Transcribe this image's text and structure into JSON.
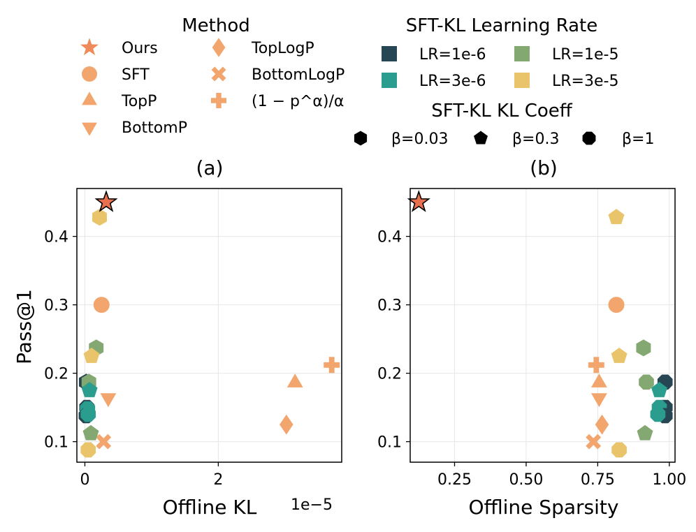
{
  "legend": {
    "method_title": "Method",
    "methods": [
      {
        "label": "Ours",
        "marker": "star",
        "color": "#ef8a5a"
      },
      {
        "label": "SFT",
        "marker": "circle",
        "color": "#f2a56d"
      },
      {
        "label": "TopP",
        "marker": "triangle-up",
        "color": "#f2a56d"
      },
      {
        "label": "BottomP",
        "marker": "triangle-down",
        "color": "#f2a56d"
      },
      {
        "label": "TopLogP",
        "marker": "diamond",
        "color": "#f2a56d"
      },
      {
        "label": "BottomLogP",
        "marker": "x",
        "color": "#f2a56d"
      },
      {
        "label": "(1 − p^α)/α",
        "marker": "plus",
        "color": "#f2a56d"
      }
    ],
    "lr_title": "SFT-KL Learning Rate",
    "lrs": [
      {
        "label": "LR=1e-6",
        "color": "#264653"
      },
      {
        "label": "LR=1e-5",
        "color": "#84a872"
      },
      {
        "label": "LR=3e-6",
        "color": "#2a9d8f"
      },
      {
        "label": "LR=3e-5",
        "color": "#e9c46a"
      }
    ],
    "kl_title": "SFT-KL KL Coeff",
    "kls": [
      {
        "label": "β=0.03",
        "marker": "hexagon"
      },
      {
        "label": "β=0.3",
        "marker": "pentagon"
      },
      {
        "label": "β=1",
        "marker": "octagon"
      }
    ]
  },
  "chart_data": [
    {
      "type": "scatter",
      "panel_label": "(a)",
      "xlabel": "Offline KL",
      "ylabel": "Pass@1",
      "x_scale_label": "1e−5",
      "xlim": [
        -0.12,
        3.85
      ],
      "ylim": [
        0.07,
        0.47
      ],
      "xticks": [
        0,
        2
      ],
      "xticklabels": [
        "0",
        "2"
      ],
      "yticks": [
        0.1,
        0.2,
        0.3,
        0.4
      ],
      "yticklabels": [
        "0.1",
        "0.2",
        "0.3",
        "0.4"
      ],
      "grid": true,
      "points": [
        {
          "method": "Ours",
          "marker": "star",
          "color": "#e8704f",
          "x": 0.32,
          "y": 0.45
        },
        {
          "method": "SFT",
          "marker": "circle",
          "color": "#f2a56d",
          "x": 0.25,
          "y": 0.3
        },
        {
          "method": "TopP",
          "marker": "triangle-up",
          "color": "#f2a56d",
          "x": 3.15,
          "y": 0.186
        },
        {
          "method": "BottomP",
          "marker": "triangle-down",
          "color": "#f2a56d",
          "x": 0.35,
          "y": 0.164
        },
        {
          "method": "TopLogP",
          "marker": "diamond",
          "color": "#f2a56d",
          "x": 3.02,
          "y": 0.125
        },
        {
          "method": "BottomLogP",
          "marker": "x",
          "color": "#f2a56d",
          "x": 0.28,
          "y": 0.1
        },
        {
          "method": "(1 − p^α)/α",
          "marker": "plus",
          "color": "#f2a56d",
          "x": 3.7,
          "y": 0.212
        },
        {
          "method": "SFT-KL",
          "marker": "hexagon",
          "color": "#e9c46a",
          "x": 0.22,
          "y": 0.428
        },
        {
          "method": "SFT-KL",
          "marker": "hexagon",
          "color": "#84a872",
          "x": 0.17,
          "y": 0.237
        },
        {
          "method": "SFT-KL",
          "marker": "pentagon",
          "color": "#e9c46a",
          "x": 0.1,
          "y": 0.225
        },
        {
          "method": "SFT-KL",
          "marker": "hexagon",
          "color": "#264653",
          "x": 0.02,
          "y": 0.187
        },
        {
          "method": "SFT-KL",
          "marker": "hexagon",
          "color": "#84a872",
          "x": 0.06,
          "y": 0.187
        },
        {
          "method": "SFT-KL",
          "marker": "pentagon",
          "color": "#2a9d8f",
          "x": 0.07,
          "y": 0.175
        },
        {
          "method": "SFT-KL",
          "marker": "octagon",
          "color": "#264653",
          "x": 0.03,
          "y": 0.15
        },
        {
          "method": "SFT-KL",
          "marker": "octagon",
          "color": "#2a9d8f",
          "x": 0.04,
          "y": 0.148
        },
        {
          "method": "SFT-KL",
          "marker": "octagon",
          "color": "#264653",
          "x": 0.02,
          "y": 0.138
        },
        {
          "method": "SFT-KL",
          "marker": "octagon",
          "color": "#2a9d8f",
          "x": 0.05,
          "y": 0.14
        },
        {
          "method": "SFT-KL",
          "marker": "pentagon",
          "color": "#84a872",
          "x": 0.09,
          "y": 0.112
        },
        {
          "method": "SFT-KL",
          "marker": "octagon",
          "color": "#e9c46a",
          "x": 0.05,
          "y": 0.088
        }
      ]
    },
    {
      "type": "scatter",
      "panel_label": "(b)",
      "xlabel": "Offline Sparsity",
      "ylabel": "",
      "xlim": [
        0.095,
        1.02
      ],
      "ylim": [
        0.07,
        0.47
      ],
      "xticks": [
        0.25,
        0.5,
        0.75,
        1.0
      ],
      "xticklabels": [
        "0.25",
        "0.50",
        "0.75",
        "1.00"
      ],
      "yticks": [
        0.1,
        0.2,
        0.3,
        0.4
      ],
      "yticklabels": [
        "0.1",
        "0.2",
        "0.3",
        "0.4"
      ],
      "grid": true,
      "points": [
        {
          "method": "Ours",
          "marker": "star",
          "color": "#e8704f",
          "x": 0.125,
          "y": 0.45
        },
        {
          "method": "SFT",
          "marker": "circle",
          "color": "#f2a56d",
          "x": 0.815,
          "y": 0.3
        },
        {
          "method": "TopP",
          "marker": "triangle-up",
          "color": "#f2a56d",
          "x": 0.755,
          "y": 0.186
        },
        {
          "method": "BottomP",
          "marker": "triangle-down",
          "color": "#f2a56d",
          "x": 0.755,
          "y": 0.164
        },
        {
          "method": "TopLogP",
          "marker": "diamond",
          "color": "#f2a56d",
          "x": 0.765,
          "y": 0.125
        },
        {
          "method": "BottomLogP",
          "marker": "x",
          "color": "#f2a56d",
          "x": 0.735,
          "y": 0.1
        },
        {
          "method": "(1 − p^α)/α",
          "marker": "plus",
          "color": "#f2a56d",
          "x": 0.745,
          "y": 0.212
        },
        {
          "method": "SFT-KL",
          "marker": "pentagon",
          "color": "#e9c46a",
          "x": 0.815,
          "y": 0.428
        },
        {
          "method": "SFT-KL",
          "marker": "hexagon",
          "color": "#84a872",
          "x": 0.91,
          "y": 0.237
        },
        {
          "method": "SFT-KL",
          "marker": "pentagon",
          "color": "#e9c46a",
          "x": 0.825,
          "y": 0.225
        },
        {
          "method": "SFT-KL",
          "marker": "octagon",
          "color": "#264653",
          "x": 0.985,
          "y": 0.187
        },
        {
          "method": "SFT-KL",
          "marker": "octagon",
          "color": "#84a872",
          "x": 0.92,
          "y": 0.187
        },
        {
          "method": "SFT-KL",
          "marker": "pentagon",
          "color": "#2a9d8f",
          "x": 0.965,
          "y": 0.175
        },
        {
          "method": "SFT-KL",
          "marker": "octagon",
          "color": "#264653",
          "x": 0.985,
          "y": 0.15
        },
        {
          "method": "SFT-KL",
          "marker": "octagon",
          "color": "#2a9d8f",
          "x": 0.965,
          "y": 0.15
        },
        {
          "method": "SFT-KL",
          "marker": "octagon",
          "color": "#264653",
          "x": 0.985,
          "y": 0.138
        },
        {
          "method": "SFT-KL",
          "marker": "octagon",
          "color": "#2a9d8f",
          "x": 0.96,
          "y": 0.14
        },
        {
          "method": "SFT-KL",
          "marker": "pentagon",
          "color": "#84a872",
          "x": 0.915,
          "y": 0.112
        },
        {
          "method": "SFT-KL",
          "marker": "octagon",
          "color": "#e9c46a",
          "x": 0.825,
          "y": 0.088
        }
      ]
    }
  ]
}
